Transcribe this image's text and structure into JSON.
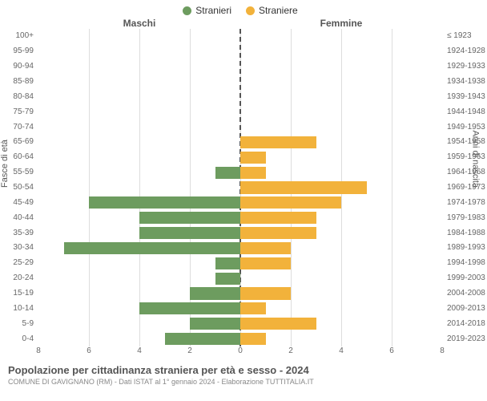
{
  "legend": {
    "items": [
      {
        "label": "Stranieri",
        "color": "#6d9c5f"
      },
      {
        "label": "Straniere",
        "color": "#f2b23b"
      }
    ]
  },
  "headers": {
    "left": "Maschi",
    "right": "Femmine"
  },
  "axis_labels": {
    "left": "Fasce di età",
    "right": "Anni di nascita"
  },
  "chart": {
    "type": "bar",
    "xmax": 8,
    "xticks": [
      8,
      6,
      4,
      2,
      0,
      2,
      4,
      6,
      8
    ],
    "grid_color": "#dddddd",
    "center_line_color": "#555555",
    "colors": {
      "male": "#6d9c5f",
      "female": "#f2b23b"
    },
    "rows": [
      {
        "age": "100+",
        "birth": "≤ 1923",
        "m": 0,
        "f": 0
      },
      {
        "age": "95-99",
        "birth": "1924-1928",
        "m": 0,
        "f": 0
      },
      {
        "age": "90-94",
        "birth": "1929-1933",
        "m": 0,
        "f": 0
      },
      {
        "age": "85-89",
        "birth": "1934-1938",
        "m": 0,
        "f": 0
      },
      {
        "age": "80-84",
        "birth": "1939-1943",
        "m": 0,
        "f": 0
      },
      {
        "age": "75-79",
        "birth": "1944-1948",
        "m": 0,
        "f": 0
      },
      {
        "age": "70-74",
        "birth": "1949-1953",
        "m": 0,
        "f": 0
      },
      {
        "age": "65-69",
        "birth": "1954-1958",
        "m": 0,
        "f": 3
      },
      {
        "age": "60-64",
        "birth": "1959-1963",
        "m": 0,
        "f": 1
      },
      {
        "age": "55-59",
        "birth": "1964-1968",
        "m": 1,
        "f": 1
      },
      {
        "age": "50-54",
        "birth": "1969-1973",
        "m": 0,
        "f": 5
      },
      {
        "age": "45-49",
        "birth": "1974-1978",
        "m": 6,
        "f": 4
      },
      {
        "age": "40-44",
        "birth": "1979-1983",
        "m": 4,
        "f": 3
      },
      {
        "age": "35-39",
        "birth": "1984-1988",
        "m": 4,
        "f": 3
      },
      {
        "age": "30-34",
        "birth": "1989-1993",
        "m": 7,
        "f": 2
      },
      {
        "age": "25-29",
        "birth": "1994-1998",
        "m": 1,
        "f": 2
      },
      {
        "age": "20-24",
        "birth": "1999-2003",
        "m": 1,
        "f": 0
      },
      {
        "age": "15-19",
        "birth": "2004-2008",
        "m": 2,
        "f": 2
      },
      {
        "age": "10-14",
        "birth": "2009-2013",
        "m": 4,
        "f": 1
      },
      {
        "age": "5-9",
        "birth": "2014-2018",
        "m": 2,
        "f": 3
      },
      {
        "age": "0-4",
        "birth": "2019-2023",
        "m": 3,
        "f": 1
      }
    ]
  },
  "caption": {
    "title": "Popolazione per cittadinanza straniera per età e sesso - 2024",
    "sub": "COMUNE DI GAVIGNANO (RM) - Dati ISTAT al 1° gennaio 2024 - Elaborazione TUTTITALIA.IT"
  }
}
